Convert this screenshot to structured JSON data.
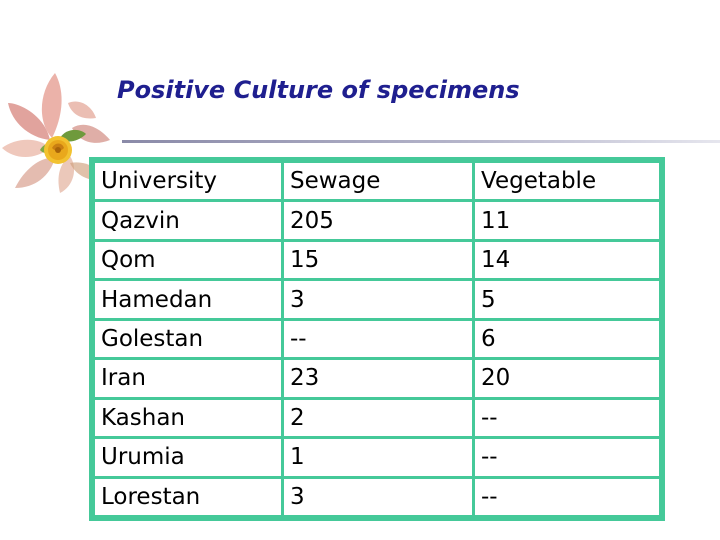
{
  "slide": {
    "title": "Positive Culture of specimens"
  },
  "table": {
    "headers": [
      "University",
      "Sewage",
      "Vegetable"
    ],
    "rows": [
      [
        "Qazvin",
        "205",
        "11"
      ],
      [
        "Qom",
        "15",
        "14"
      ],
      [
        "Hamedan",
        "3",
        "5"
      ],
      [
        "Golestan",
        "--",
        "6"
      ],
      [
        "Iran",
        "23",
        "20"
      ],
      [
        "Kashan",
        "2",
        "--"
      ],
      [
        "Urumia",
        "1",
        "--"
      ],
      [
        "Lorestan",
        "3",
        "--"
      ]
    ]
  },
  "colors": {
    "title": "#1f1f8f",
    "table_border": "#45c999"
  },
  "icons": {
    "decoration": "rose-flower-icon"
  }
}
